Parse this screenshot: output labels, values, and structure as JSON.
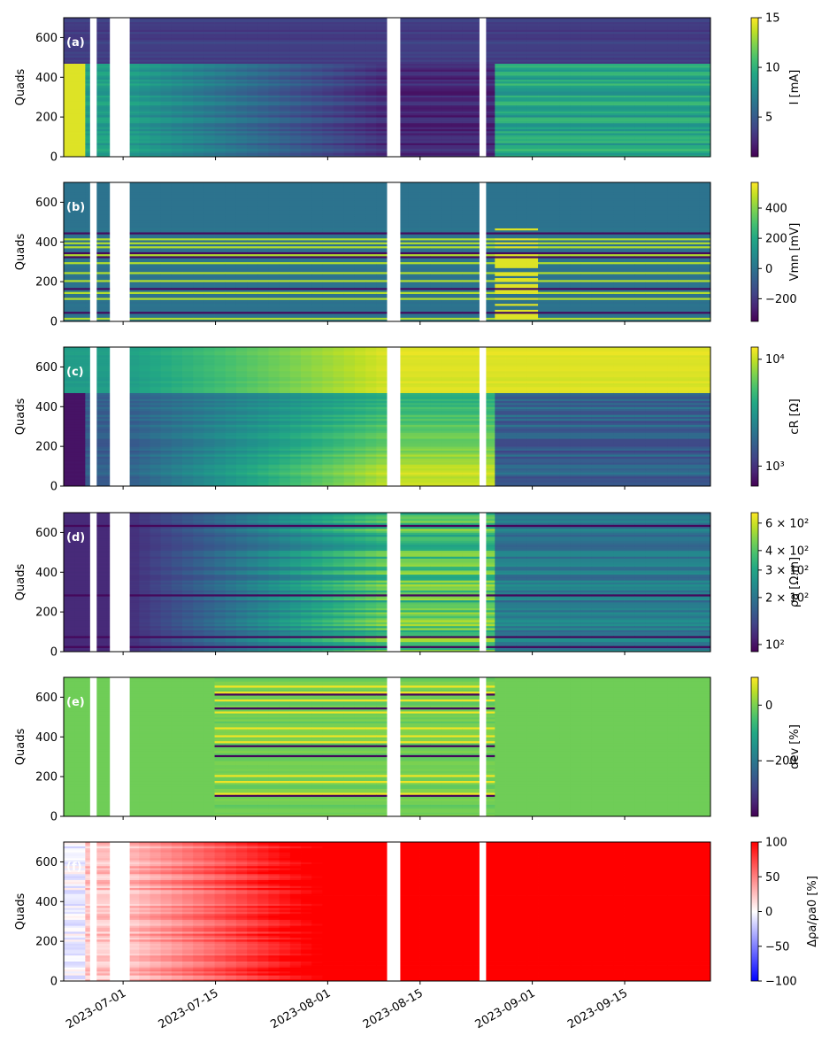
{
  "chart_data": {
    "type": "heatmap",
    "x_axis": {
      "type": "date",
      "range": [
        "2023-06-22",
        "2023-09-28"
      ],
      "tick_labels": [
        "2023-07-01",
        "2023-07-15",
        "2023-08-01",
        "2023-08-15",
        "2023-09-01",
        "2023-09-15"
      ],
      "label_rotation_deg": 30
    },
    "data_gaps": [
      [
        "2023-06-26",
        "2023-06-27"
      ],
      [
        "2023-06-29",
        "2023-07-02"
      ],
      [
        "2023-08-10",
        "2023-08-12"
      ],
      [
        "2023-08-24",
        "2023-08-25"
      ]
    ],
    "y_axis": {
      "label": "Quads",
      "range": [
        0,
        700
      ],
      "ticks": [
        0,
        200,
        400,
        600
      ]
    },
    "panels": [
      {
        "letter": "(a)",
        "colorbar_label": "I [mA]",
        "colormap": "viridis",
        "scale": "linear",
        "clim": [
          1,
          15
        ],
        "colorbar_ticks": [
          "5",
          "10",
          "15"
        ],
        "colorbar_tick_values": [
          5,
          10,
          15
        ],
        "description": "High current (~15 mA) for quads 0-470 before 2023-06-26, decreasing to ~2 mA by mid-July; quads 470-700 low (~3 mA); after 2023-08-25 quads 0-470 rise to ~7-11 mA"
      },
      {
        "letter": "(b)",
        "colorbar_label": "Vmn [mV]",
        "colormap": "viridis",
        "scale": "linear",
        "clim": [
          -350,
          570
        ],
        "colorbar_ticks": [
          "−200",
          "0",
          "200",
          "400"
        ],
        "colorbar_tick_values": [
          -200,
          0,
          200,
          400
        ],
        "description": "Mostly ~0 mV; alternating bright (~500 mV) and dark stripes in quads 0-470, strongest after 2023-08-26"
      },
      {
        "letter": "(c)",
        "colorbar_label": "cR [Ω]",
        "colormap": "viridis",
        "scale": "log",
        "clim": [
          650,
          13000
        ],
        "colorbar_ticks": [
          "10³",
          "10⁴"
        ],
        "colorbar_tick_values": [
          1000,
          10000
        ],
        "description": "Quads 0-470 low (~800 Ω) early, rising to ~10^4 by mid-August, drop back after 2023-08-26; quads 470-700 rise to ~10^4"
      },
      {
        "letter": "(d)",
        "colorbar_label": "ρa [Ω.m]",
        "colormap": "viridis",
        "scale": "log",
        "clim": [
          90,
          700
        ],
        "colorbar_ticks": [
          "10²",
          "2 × 10²",
          "3 × 10²",
          "4 × 10²",
          "6 × 10²"
        ],
        "colorbar_tick_values": [
          100,
          200,
          300,
          400,
          600
        ],
        "description": "Apparent resistivity ~100 Ω.m at start, rising to ~500 Ω.m by August, then decreasing after September"
      },
      {
        "letter": "(e)",
        "colorbar_label": "dev [%]",
        "colormap": "viridis",
        "scale": "linear",
        "clim": [
          -400,
          100
        ],
        "colorbar_ticks": [
          "−200",
          "0"
        ],
        "colorbar_tick_values": [
          -200,
          0
        ],
        "description": "Mostly ~0 %; scattered strongly negative stripes (~-400 %) between mid-July and 2023-08-26"
      },
      {
        "letter": "(f)",
        "colorbar_label": "Δρa/ρa0 [%]",
        "colormap": "bwr",
        "scale": "linear",
        "clim": [
          -100,
          100
        ],
        "colorbar_ticks": [
          "−100",
          "−50",
          "0",
          "50",
          "100"
        ],
        "colorbar_tick_values": [
          -100,
          -50,
          0,
          50,
          100
        ],
        "description": "Near 0 % at start, rising to +100 % (saturated red) from mid-July onward"
      }
    ]
  }
}
